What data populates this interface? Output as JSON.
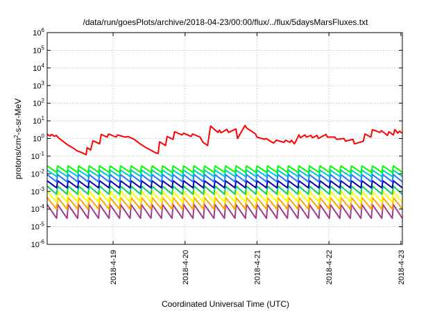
{
  "chart_data": {
    "type": "line",
    "title": "/data/run/goesPlots/archive/2018-04-23/00:00/flux/../flux/5daysMarsFluxes.txt",
    "xlabel": "Coordinated Universal Time (UTC)",
    "ylabel": {
      "pre": "protons/cm",
      "sup": "2",
      "post": "-s-sr-MeV"
    },
    "y_scale": "log",
    "ylim": [
      1e-06,
      1000000
    ],
    "y_ticks": [
      {
        "exp": "-6",
        "value": 1e-06
      },
      {
        "exp": "-5",
        "value": 1e-05
      },
      {
        "exp": "-4",
        "value": 0.0001
      },
      {
        "exp": "-3",
        "value": 0.001
      },
      {
        "exp": "-2",
        "value": 0.01
      },
      {
        "exp": "-1",
        "value": 0.1
      },
      {
        "exp": "0",
        "value": 1
      },
      {
        "exp": "1",
        "value": 10
      },
      {
        "exp": "2",
        "value": 100
      },
      {
        "exp": "3",
        "value": 1000
      },
      {
        "exp": "4",
        "value": 10000
      },
      {
        "exp": "5",
        "value": 100000
      },
      {
        "exp": "6",
        "value": 1000000
      }
    ],
    "y_tick_base": "10",
    "xlim": [
      "2018-04-18 02:00",
      "2018-04-23 00:30"
    ],
    "x_ticks": [
      {
        "label": "2018-4-19",
        "date": "2018-04-19 00:00"
      },
      {
        "label": "2018-4-20",
        "date": "2018-04-20 00:00"
      },
      {
        "label": "2018-4-21",
        "date": "2018-04-21 00:00"
      },
      {
        "label": "2018-4-22",
        "date": "2018-04-22 00:00"
      },
      {
        "label": "2018-4-23",
        "date": "2018-04-23 00:00"
      }
    ],
    "grid": true,
    "legend": "none",
    "series": [
      {
        "color": "#ff0000",
        "x": [
          "2018-04-18 02:00",
          "2018-04-18 02:15",
          "2018-04-18 03:00",
          "2018-04-18 03:30",
          "2018-04-18 04:30",
          "2018-04-18 05:00",
          "2018-04-18 06:00",
          "2018-04-18 07:30",
          "2018-04-18 09:00",
          "2018-04-18 10:30",
          "2018-04-18 12:00",
          "2018-04-18 13:30",
          "2018-04-18 15:00",
          "2018-04-18 15:20",
          "2018-04-18 16:30",
          "2018-04-18 17:15",
          "2018-04-18 19:30",
          "2018-04-18 20:00",
          "2018-04-18 22:00",
          "2018-04-18 22:30",
          "2018-04-19 01:00",
          "2018-04-19 01:30",
          "2018-04-19 04:00",
          "2018-04-19 05:00",
          "2018-04-19 07:00",
          "2018-04-19 09:00",
          "2018-04-19 11:00",
          "2018-04-19 13:00",
          "2018-04-19 14:00",
          "2018-04-19 15:00",
          "2018-04-19 15:30",
          "2018-04-19 17:30",
          "2018-04-19 18:00",
          "2018-04-19 20:00",
          "2018-04-19 20:30",
          "2018-04-19 23:00",
          "2018-04-19 23:30",
          "2018-04-20 02:00",
          "2018-04-20 02:30",
          "2018-04-20 05:00",
          "2018-04-20 06:00",
          "2018-04-20 07:30",
          "2018-04-20 08:30",
          "2018-04-20 11:00",
          "2018-04-20 11:30",
          "2018-04-20 12:00",
          "2018-04-20 14:00",
          "2018-04-20 14:30",
          "2018-04-20 17:00",
          "2018-04-20 17:30",
          "2018-04-20 20:00",
          "2018-04-20 20:30",
          "2018-04-20 23:30",
          "2018-04-21 00:00",
          "2018-04-21 02:30",
          "2018-04-21 03:00",
          "2018-04-21 05:30",
          "2018-04-21 06:30",
          "2018-04-21 09:00",
          "2018-04-21 09:30",
          "2018-04-21 11:00",
          "2018-04-21 11:30",
          "2018-04-21 12:30",
          "2018-04-21 14:00",
          "2018-04-21 14:30",
          "2018-04-21 16:00",
          "2018-04-21 16:30",
          "2018-04-21 18:00",
          "2018-04-21 18:30",
          "2018-04-21 20:00",
          "2018-04-21 20:30",
          "2018-04-21 23:00",
          "2018-04-21 23:30",
          "2018-04-22 02:00",
          "2018-04-22 02:30",
          "2018-04-22 05:00",
          "2018-04-22 05:30",
          "2018-04-22 08:00",
          "2018-04-22 08:30",
          "2018-04-22 11:30",
          "2018-04-22 12:00",
          "2018-04-22 14:00",
          "2018-04-22 14:30",
          "2018-04-22 17:00",
          "2018-04-22 17:30",
          "2018-04-22 19:30",
          "2018-04-22 20:00",
          "2018-04-22 21:30",
          "2018-04-22 22:00",
          "2018-04-22 23:00",
          "2018-04-22 23:30",
          "2018-04-23 00:30"
        ],
        "values": [
          1.8,
          1.6,
          1.4,
          1.7,
          1.3,
          1.5,
          1.0,
          0.65,
          0.42,
          0.3,
          0.2,
          0.16,
          0.12,
          0.3,
          0.22,
          0.75,
          0.5,
          1.7,
          1.2,
          1.8,
          1.2,
          1.6,
          1.2,
          1.3,
          0.9,
          0.5,
          0.3,
          0.2,
          0.16,
          0.14,
          0.65,
          0.4,
          1.3,
          0.9,
          2.4,
          1.6,
          2.0,
          1.3,
          1.8,
          1.2,
          0.6,
          0.4,
          5.0,
          2.2,
          3.0,
          2.1,
          3.3,
          2.2,
          3.5,
          1.0,
          5.5,
          4.0,
          1.8,
          1.2,
          0.9,
          1.0,
          0.55,
          0.8,
          0.6,
          0.8,
          0.6,
          0.8,
          0.5,
          1.6,
          1.1,
          1.6,
          1.2,
          1.5,
          1.1,
          1.5,
          1.0,
          1.7,
          1.2,
          1.2,
          0.9,
          1.0,
          0.7,
          0.9,
          0.5,
          0.7,
          1.8,
          1.2,
          3.2,
          2.2,
          2.8,
          1.5,
          2.4,
          1.6,
          3.2,
          2.0,
          2.6,
          2.0
        ]
      },
      {
        "color": "#00ff00",
        "period_hours": 3.5,
        "peak": 0.028,
        "trough": 0.012
      },
      {
        "color": "#00c8c8",
        "period_hours": 3.5,
        "peak": 0.016,
        "trough": 0.007
      },
      {
        "color": "#1e78ff",
        "period_hours": 3.5,
        "peak": 0.009,
        "trough": 0.0035
      },
      {
        "color": "#0000b4",
        "period_hours": 3.5,
        "peak": 0.004,
        "trough": 0.0016
      },
      {
        "color": "#00d264",
        "period_hours": 3.5,
        "peak": 0.002,
        "trough": 0.0007
      },
      {
        "color": "#ffff00",
        "period_hours": 3.5,
        "peak": 0.001,
        "trough": 0.00025
      },
      {
        "color": "#ffa000",
        "period_hours": 3.5,
        "peak": 0.00045,
        "trough": 0.0001
      },
      {
        "color": "#a03c8c",
        "period_hours": 3.5,
        "peak": 0.00018,
        "trough": 3e-05
      }
    ]
  }
}
